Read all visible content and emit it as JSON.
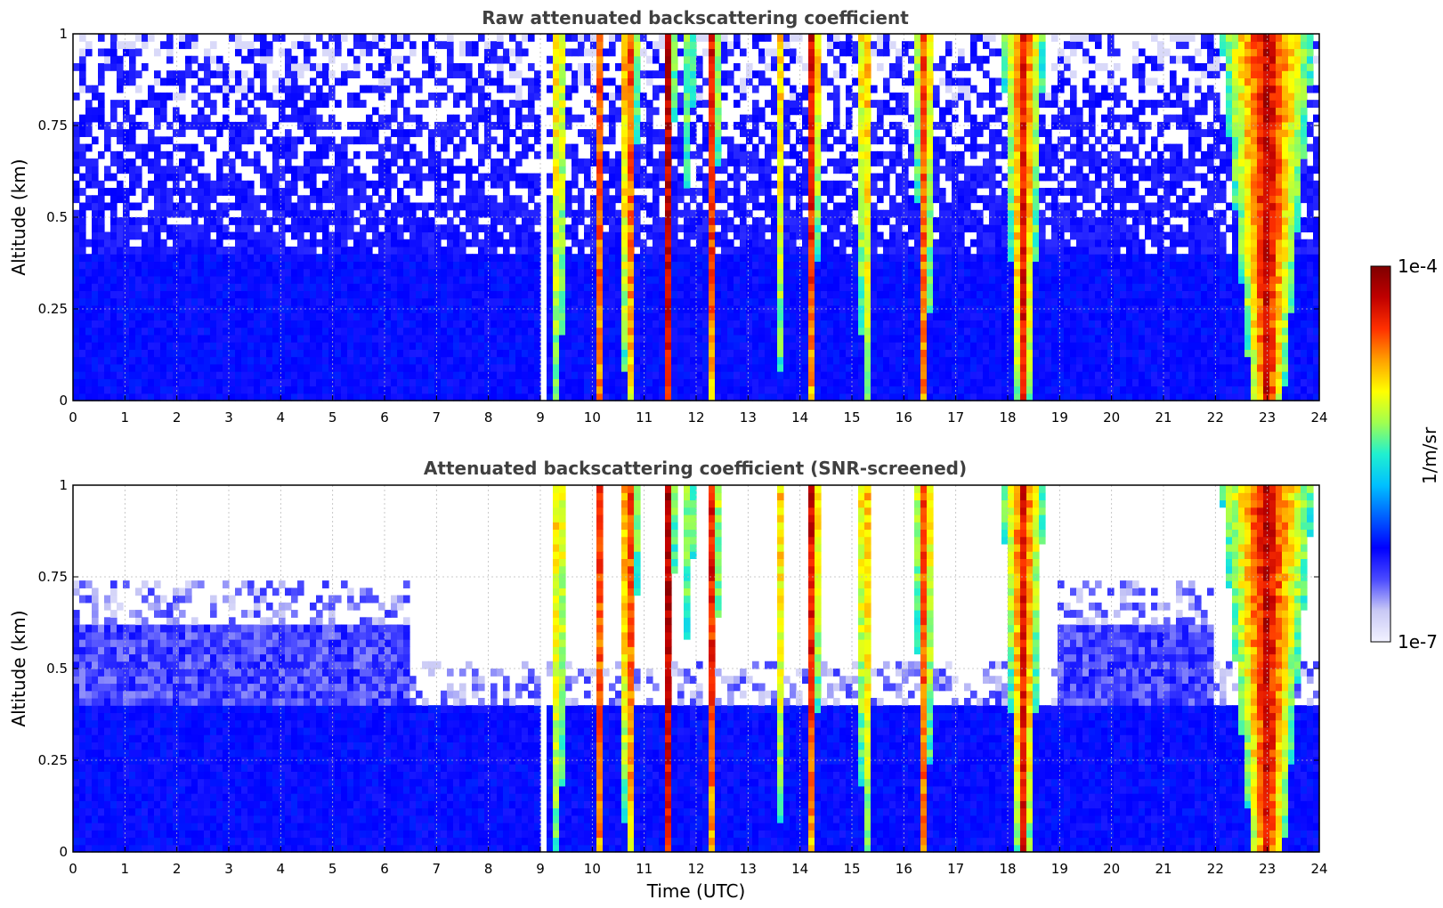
{
  "chart_data": [
    {
      "type": "heatmap",
      "title": "Raw attenuated backscattering coefficient",
      "xlabel": "",
      "ylabel": "Altitude (km)",
      "xlim": [
        0,
        24
      ],
      "ylim": [
        0,
        1
      ],
      "x_ticks": [
        "0",
        "1",
        "2",
        "3",
        "4",
        "5",
        "6",
        "7",
        "8",
        "9",
        "10",
        "11",
        "12",
        "13",
        "14",
        "15",
        "16",
        "17",
        "18",
        "19",
        "20",
        "21",
        "22",
        "23",
        "24"
      ],
      "y_ticks": [
        "0",
        "0.25",
        "0.5",
        "0.75",
        "1"
      ],
      "grid": true,
      "screened": false
    },
    {
      "type": "heatmap",
      "title": "Attenuated backscattering coefficient (SNR-screened)",
      "xlabel": "Time (UTC)",
      "ylabel": "Altitude (km)",
      "xlim": [
        0,
        24
      ],
      "ylim": [
        0,
        1
      ],
      "x_ticks": [
        "0",
        "1",
        "2",
        "3",
        "4",
        "5",
        "6",
        "7",
        "8",
        "9",
        "10",
        "11",
        "12",
        "13",
        "14",
        "15",
        "16",
        "17",
        "18",
        "19",
        "20",
        "21",
        "22",
        "23",
        "24"
      ],
      "y_ticks": [
        "0",
        "0.25",
        "0.5",
        "0.75",
        "1"
      ],
      "grid": true,
      "screened": true
    }
  ],
  "colorbar": {
    "label": "1/m/sr",
    "max_label": "1e-4",
    "min_label": "1e-7",
    "scale": "log",
    "colors": [
      "#f2f2ff",
      "#c8c8f5",
      "#4a4aff",
      "#0000ff",
      "#0060ff",
      "#00c0ff",
      "#20f0d0",
      "#a0ff50",
      "#ffff00",
      "#ffa000",
      "#ff3000",
      "#c00000",
      "#7f0000"
    ]
  },
  "cloud_events": [
    {
      "start": 9.2,
      "end": 9.5,
      "top": 1.0,
      "strength": 0.55
    },
    {
      "start": 10.05,
      "end": 10.25,
      "top": 1.0,
      "strength": 0.7
    },
    {
      "start": 10.5,
      "end": 10.9,
      "top": 1.0,
      "strength": 0.8
    },
    {
      "start": 11.35,
      "end": 11.6,
      "top": 1.0,
      "strength": 1.0
    },
    {
      "start": 11.8,
      "end": 11.95,
      "top": 1.0,
      "strength": 0.6
    },
    {
      "start": 12.2,
      "end": 12.45,
      "top": 1.0,
      "strength": 0.95
    },
    {
      "start": 13.55,
      "end": 13.65,
      "top": 1.0,
      "strength": 0.7
    },
    {
      "start": 14.1,
      "end": 14.4,
      "top": 1.0,
      "strength": 1.0
    },
    {
      "start": 15.1,
      "end": 15.4,
      "top": 1.0,
      "strength": 0.65
    },
    {
      "start": 16.2,
      "end": 16.6,
      "top": 1.0,
      "strength": 0.7
    },
    {
      "start": 17.9,
      "end": 18.7,
      "top": 1.0,
      "strength": 0.75
    },
    {
      "start": 22.1,
      "end": 23.9,
      "top": 1.0,
      "strength": 0.85
    }
  ]
}
